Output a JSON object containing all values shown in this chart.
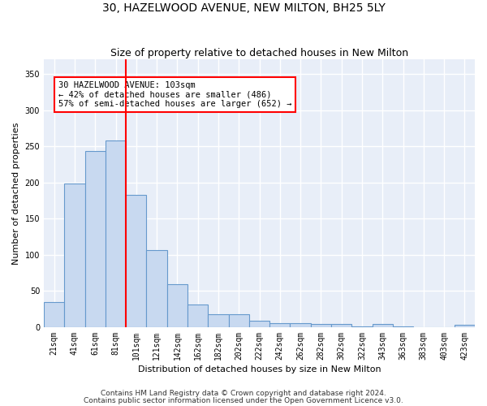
{
  "title": "30, HAZELWOOD AVENUE, NEW MILTON, BH25 5LY",
  "subtitle": "Size of property relative to detached houses in New Milton",
  "xlabel": "Distribution of detached houses by size in New Milton",
  "ylabel": "Number of detached properties",
  "categories": [
    "21sqm",
    "41sqm",
    "61sqm",
    "81sqm",
    "101sqm",
    "121sqm",
    "142sqm",
    "162sqm",
    "182sqm",
    "202sqm",
    "222sqm",
    "242sqm",
    "262sqm",
    "282sqm",
    "302sqm",
    "322sqm",
    "343sqm",
    "363sqm",
    "383sqm",
    "403sqm",
    "423sqm"
  ],
  "values": [
    35,
    198,
    243,
    258,
    183,
    106,
    59,
    31,
    18,
    18,
    9,
    6,
    6,
    4,
    4,
    1,
    4,
    1,
    0,
    0,
    3
  ],
  "bar_color": "#c8d9f0",
  "bar_edge_color": "#6699cc",
  "vline_color": "red",
  "vline_x_index": 3.5,
  "annotation_text": "30 HAZELWOOD AVENUE: 103sqm\n← 42% of detached houses are smaller (486)\n57% of semi-detached houses are larger (652) →",
  "annotation_box_color": "white",
  "annotation_box_edge_color": "red",
  "footer1": "Contains HM Land Registry data © Crown copyright and database right 2024.",
  "footer2": "Contains public sector information licensed under the Open Government Licence v3.0.",
  "ylim": [
    0,
    370
  ],
  "yticks": [
    0,
    50,
    100,
    150,
    200,
    250,
    300,
    350
  ],
  "background_color": "#e8eef8",
  "grid_color": "white",
  "title_fontsize": 10,
  "subtitle_fontsize": 9,
  "ylabel_fontsize": 8,
  "xlabel_fontsize": 8,
  "tick_fontsize": 7,
  "footer_fontsize": 6.5,
  "annotation_fontsize": 7.5
}
